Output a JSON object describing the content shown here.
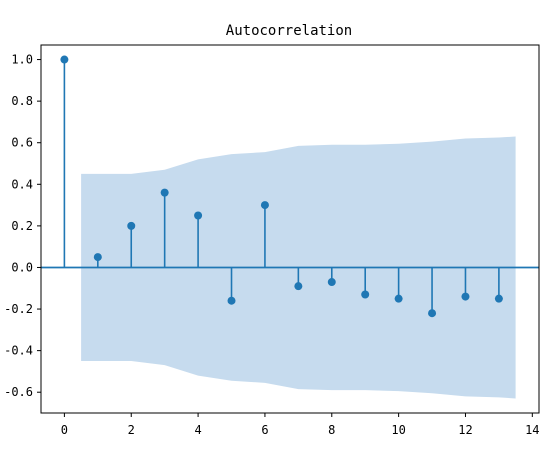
{
  "chart_data": {
    "type": "stem",
    "title": "Autocorrelation",
    "xlabel": "",
    "ylabel": "",
    "lags": [
      0,
      1,
      2,
      3,
      4,
      5,
      6,
      7,
      8,
      9,
      10,
      11,
      12,
      13
    ],
    "values": [
      1.0,
      0.05,
      0.2,
      0.36,
      0.25,
      -0.16,
      0.3,
      -0.09,
      -0.07,
      -0.13,
      -0.15,
      -0.22,
      -0.14,
      -0.15
    ],
    "confidence_band": {
      "x": [
        0.5,
        1,
        2,
        3,
        4,
        5,
        6,
        7,
        8,
        9,
        10,
        11,
        12,
        13,
        13.5
      ],
      "upper": [
        0.45,
        0.45,
        0.45,
        0.47,
        0.52,
        0.545,
        0.555,
        0.585,
        0.59,
        0.59,
        0.595,
        0.605,
        0.62,
        0.625,
        0.63
      ]
    },
    "xlim": [
      -0.7,
      14.2
    ],
    "ylim": [
      -0.7,
      1.07
    ],
    "xticks": [
      0,
      2,
      4,
      6,
      8,
      10,
      12,
      14
    ],
    "yticks": [
      -0.6,
      -0.4,
      -0.2,
      0.0,
      0.2,
      0.4,
      0.6,
      0.8,
      1.0
    ],
    "ytick_labels": [
      "-0.6",
      "-0.4",
      "-0.2",
      "0.0",
      "0.2",
      "0.4",
      "0.6",
      "0.8",
      "1.0"
    ],
    "xtick_labels": [
      "0",
      "2",
      "4",
      "6",
      "8",
      "10",
      "12",
      "14"
    ],
    "grid": false,
    "colors": {
      "stem": "#1f77b4",
      "band": "#c6dbee",
      "axes": "#000000"
    }
  }
}
